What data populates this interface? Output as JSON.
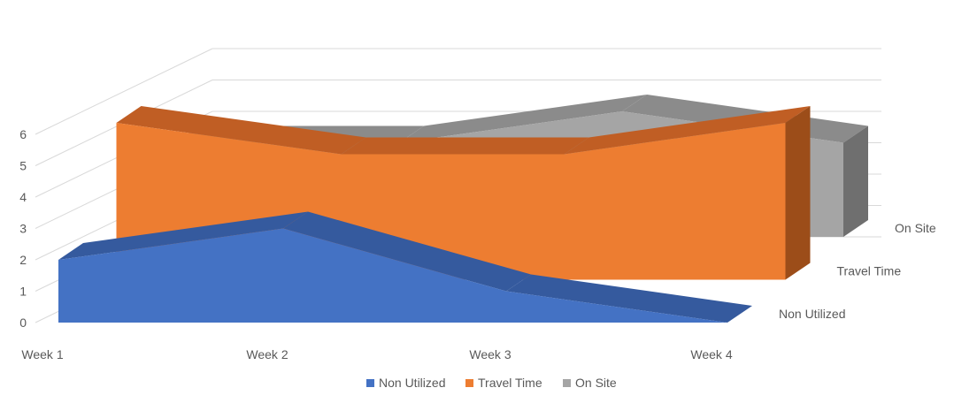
{
  "chart_data": {
    "type": "area",
    "style": "3d",
    "categories": [
      "Week 1",
      "Week 2",
      "Week 3",
      "Week 4"
    ],
    "series": [
      {
        "name": "Non Utilized",
        "values": [
          2,
          3,
          1,
          0
        ],
        "color": "#4472c4",
        "side_color": "#2f5597",
        "top_color": "#355a9e"
      },
      {
        "name": "Travel  Time",
        "values": [
          5,
          4,
          4,
          5
        ],
        "color": "#ed7d31",
        "side_color": "#9c4d19",
        "top_color": "#c05e24"
      },
      {
        "name": "On Site",
        "values": [
          3,
          3,
          4,
          3
        ],
        "color": "#a5a5a5",
        "side_color": "#6f6f6f",
        "top_color": "#8b8b8b"
      }
    ],
    "yticks": [
      "0",
      "1",
      "2",
      "3",
      "4",
      "5",
      "6"
    ],
    "ylim": [
      0,
      6
    ],
    "grid": true,
    "legend": "bottom"
  }
}
